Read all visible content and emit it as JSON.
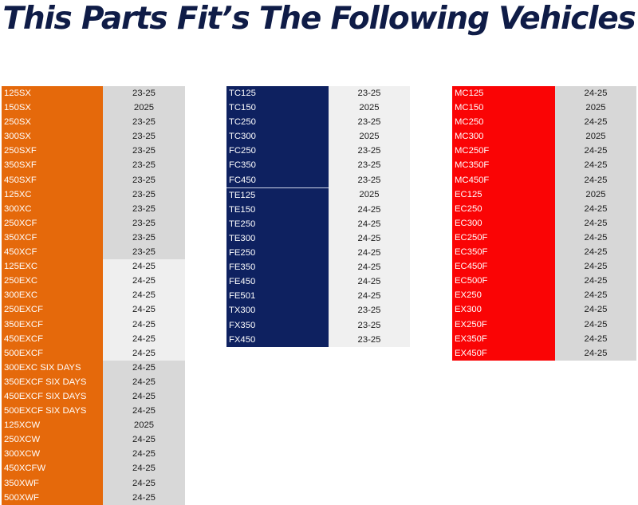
{
  "title": "This Parts Fit’s The Following Vehicles",
  "colors": {
    "orange": "#e5690b",
    "navy": "#0e2160",
    "red": "#fa0405",
    "title": "#0f1c47"
  },
  "tables": [
    {
      "name": "orange-table",
      "rows": [
        {
          "model": "125SX",
          "years": "23-25",
          "shade": "dark"
        },
        {
          "model": "150SX",
          "years": "2025",
          "shade": "dark"
        },
        {
          "model": "250SX",
          "years": "23-25",
          "shade": "dark"
        },
        {
          "model": "300SX",
          "years": "23-25",
          "shade": "dark"
        },
        {
          "model": "250SXF",
          "years": "23-25",
          "shade": "dark"
        },
        {
          "model": "350SXF",
          "years": "23-25",
          "shade": "dark"
        },
        {
          "model": "450SXF",
          "years": "23-25",
          "shade": "dark"
        },
        {
          "model": "125XC",
          "years": "23-25",
          "shade": "dark"
        },
        {
          "model": "300XC",
          "years": "23-25",
          "shade": "dark"
        },
        {
          "model": "250XCF",
          "years": "23-25",
          "shade": "dark"
        },
        {
          "model": "350XCF",
          "years": "23-25",
          "shade": "dark"
        },
        {
          "model": "450XCF",
          "years": "23-25",
          "shade": "dark"
        },
        {
          "model": "125EXC",
          "years": "24-25",
          "shade": "light"
        },
        {
          "model": "250EXC",
          "years": "24-25",
          "shade": "light"
        },
        {
          "model": "300EXC",
          "years": "24-25",
          "shade": "light"
        },
        {
          "model": "250EXCF",
          "years": "24-25",
          "shade": "light"
        },
        {
          "model": "350EXCF",
          "years": "24-25",
          "shade": "light"
        },
        {
          "model": "450EXCF",
          "years": "24-25",
          "shade": "light"
        },
        {
          "model": "500EXCF",
          "years": "24-25",
          "shade": "light"
        },
        {
          "model": "300EXC SIX DAYS",
          "years": "24-25",
          "shade": "dark"
        },
        {
          "model": "350EXCF SIX DAYS",
          "years": "24-25",
          "shade": "dark"
        },
        {
          "model": "450EXCF SIX DAYS",
          "years": "24-25",
          "shade": "dark"
        },
        {
          "model": "500EXCF SIX DAYS",
          "years": "24-25",
          "shade": "dark"
        },
        {
          "model": "125XCW",
          "years": "2025",
          "shade": "dark"
        },
        {
          "model": "250XCW",
          "years": "24-25",
          "shade": "dark"
        },
        {
          "model": "300XCW",
          "years": "24-25",
          "shade": "dark"
        },
        {
          "model": "450XCFW",
          "years": "24-25",
          "shade": "dark"
        },
        {
          "model": "350XWF",
          "years": "24-25",
          "shade": "dark"
        },
        {
          "model": "500XWF",
          "years": "24-25",
          "shade": "dark"
        }
      ]
    },
    {
      "name": "navy-table",
      "rows": [
        {
          "model": "TC125",
          "years": "23-25"
        },
        {
          "model": "TC150",
          "years": "2025"
        },
        {
          "model": "TC250",
          "years": "23-25"
        },
        {
          "model": "TC300",
          "years": "2025"
        },
        {
          "model": "FC250",
          "years": "23-25"
        },
        {
          "model": "FC350",
          "years": "23-25"
        },
        {
          "model": "FC450",
          "years": "23-25"
        },
        {
          "model": "TE125",
          "years": "2025",
          "sep": true
        },
        {
          "model": "TE150",
          "years": "24-25"
        },
        {
          "model": "TE250",
          "years": "24-25"
        },
        {
          "model": "TE300",
          "years": "24-25"
        },
        {
          "model": "FE250",
          "years": "24-25"
        },
        {
          "model": "FE350",
          "years": "24-25"
        },
        {
          "model": "FE450",
          "years": "24-25"
        },
        {
          "model": "FE501",
          "years": "24-25"
        },
        {
          "model": "TX300",
          "years": "23-25"
        },
        {
          "model": "FX350",
          "years": "23-25"
        },
        {
          "model": "FX450",
          "years": "23-25"
        }
      ]
    },
    {
      "name": "red-table",
      "rows": [
        {
          "model": "MC125",
          "years": "24-25"
        },
        {
          "model": "MC150",
          "years": "2025"
        },
        {
          "model": "MC250",
          "years": "24-25"
        },
        {
          "model": "MC300",
          "years": "2025"
        },
        {
          "model": "MC250F",
          "years": "24-25"
        },
        {
          "model": "MC350F",
          "years": "24-25"
        },
        {
          "model": "MC450F",
          "years": "24-25"
        },
        {
          "model": "EC125",
          "years": "2025"
        },
        {
          "model": "EC250",
          "years": "24-25"
        },
        {
          "model": "EC300",
          "years": "24-25"
        },
        {
          "model": "EC250F",
          "years": "24-25"
        },
        {
          "model": "EC350F",
          "years": "24-25"
        },
        {
          "model": "EC450F",
          "years": "24-25"
        },
        {
          "model": "EC500F",
          "years": "24-25"
        },
        {
          "model": "EX250",
          "years": "24-25"
        },
        {
          "model": "EX300",
          "years": "24-25"
        },
        {
          "model": "EX250F",
          "years": "24-25"
        },
        {
          "model": "EX350F",
          "years": "24-25"
        },
        {
          "model": "EX450F",
          "years": "24-25"
        }
      ]
    }
  ]
}
